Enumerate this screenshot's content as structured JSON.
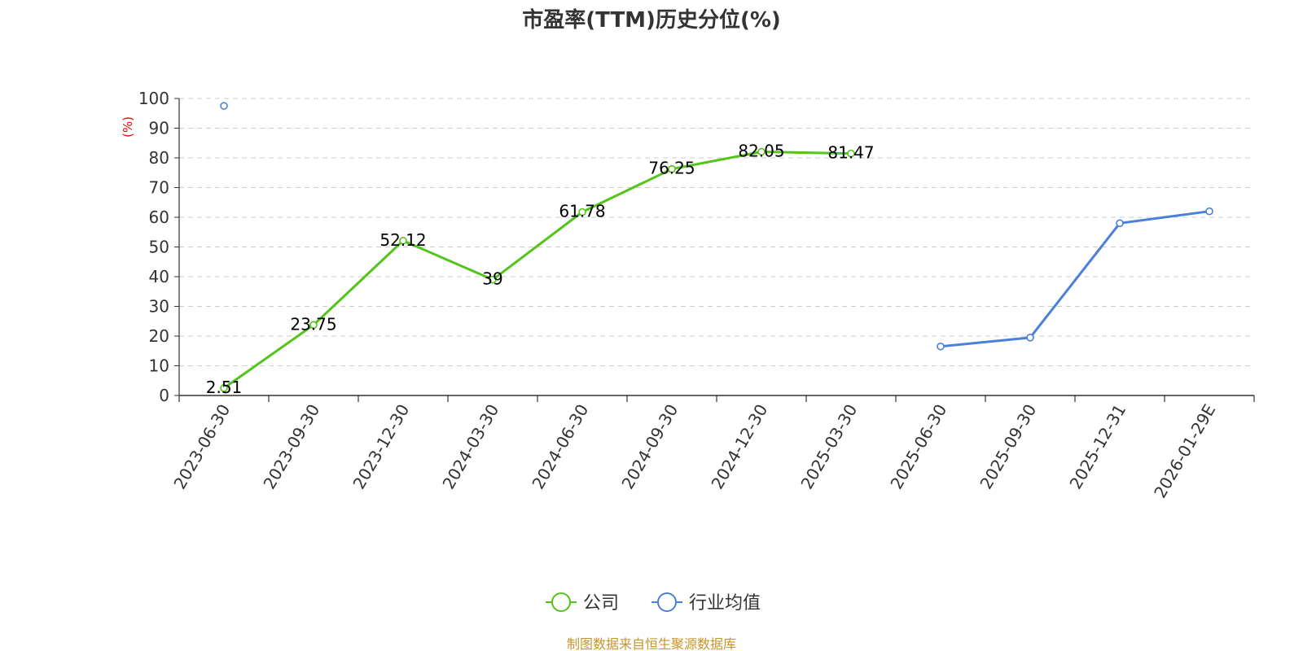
{
  "chart_data": {
    "type": "line",
    "title": "市盈率(TTM)历史分位(%)",
    "ylabel": "(%)",
    "ylim": [
      0,
      100
    ],
    "yticks": [
      0,
      10,
      20,
      30,
      40,
      50,
      60,
      70,
      80,
      90,
      100
    ],
    "grid": true,
    "legend_position": "bottom",
    "categories": [
      "2023-06-30",
      "2023-09-30",
      "2023-12-30",
      "2024-03-30",
      "2024-06-30",
      "2024-09-30",
      "2024-12-30",
      "2025-03-30",
      "2025-06-30",
      "2025-09-30",
      "2025-12-31",
      "2026-01-29E"
    ],
    "series": [
      {
        "name": "公司",
        "color": "#52c41a",
        "show_labels": true,
        "values": [
          2.51,
          23.75,
          52.12,
          39,
          61.78,
          76.25,
          82.05,
          81.47,
          null,
          null,
          null,
          null
        ],
        "labels": [
          "2.51",
          "23.75",
          "52.12",
          "39",
          "61.78",
          "76.25",
          "82.05",
          "81.47",
          null,
          null,
          null,
          null
        ]
      },
      {
        "name": "行业均值",
        "color": "#4a7fdb",
        "show_labels": false,
        "values": [
          97.5,
          null,
          null,
          null,
          null,
          null,
          null,
          null,
          16.5,
          19.5,
          58,
          62
        ]
      }
    ]
  },
  "footer": {
    "source": "制图数据来自恒生聚源数据库",
    "source_color": "#c8942a"
  },
  "ylabel_color": "#e60000"
}
